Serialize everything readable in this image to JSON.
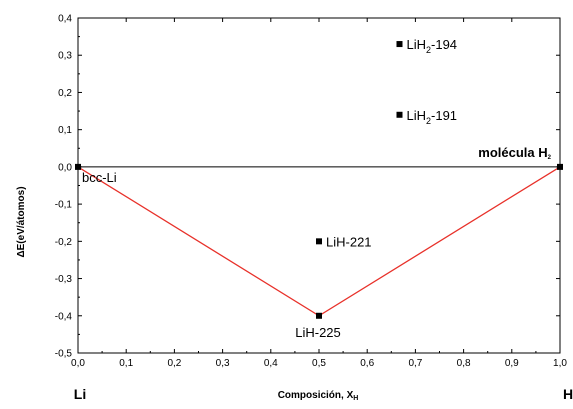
{
  "chart_data": {
    "type": "scatter",
    "title": "",
    "xlabel": "Composición, X",
    "xlabel_sub": "H",
    "ylabel": "ΔE(eV/átomos)",
    "xlim": [
      0.0,
      1.0
    ],
    "ylim": [
      -0.5,
      0.4
    ],
    "x_ticks": [
      "0,0",
      "0,1",
      "0,2",
      "0,3",
      "0,4",
      "0,5",
      "0,6",
      "0,7",
      "0,8",
      "0,9",
      "1,0"
    ],
    "y_ticks": [
      "0,4",
      "0,3",
      "0,2",
      "0,1",
      "0,0",
      "-0,1",
      "-0,2",
      "-0,3",
      "-0,4",
      "-0,5"
    ],
    "x_tick_values": [
      0.0,
      0.1,
      0.2,
      0.3,
      0.4,
      0.5,
      0.6,
      0.7,
      0.8,
      0.9,
      1.0
    ],
    "y_tick_values": [
      0.4,
      0.3,
      0.2,
      0.1,
      0.0,
      -0.1,
      -0.2,
      -0.3,
      -0.4,
      -0.5
    ],
    "reference_line_y": 0.0,
    "end_labels": {
      "left": "Li",
      "right": "H"
    },
    "points": [
      {
        "x": 0.0,
        "y": 0.0,
        "label": "bcc-Li",
        "sub": "",
        "label_rest": ""
      },
      {
        "x": 0.5,
        "y": -0.4,
        "label": "LiH-225",
        "sub": "",
        "label_rest": ""
      },
      {
        "x": 0.5,
        "y": -0.2,
        "label": "LiH-221",
        "sub": "",
        "label_rest": ""
      },
      {
        "x": 0.667,
        "y": 0.33,
        "label": "LiH",
        "sub": "2",
        "label_rest": "-194"
      },
      {
        "x": 0.667,
        "y": 0.14,
        "label": "LiH",
        "sub": "2",
        "label_rest": "-191"
      },
      {
        "x": 1.0,
        "y": 0.0,
        "label": "molécula H",
        "sub": "2",
        "label_rest": ""
      }
    ],
    "hull": {
      "x": [
        0.0,
        0.5,
        1.0
      ],
      "y": [
        0.0,
        -0.4,
        0.0
      ],
      "color": "#e8312a"
    },
    "point_color": "#000000"
  }
}
